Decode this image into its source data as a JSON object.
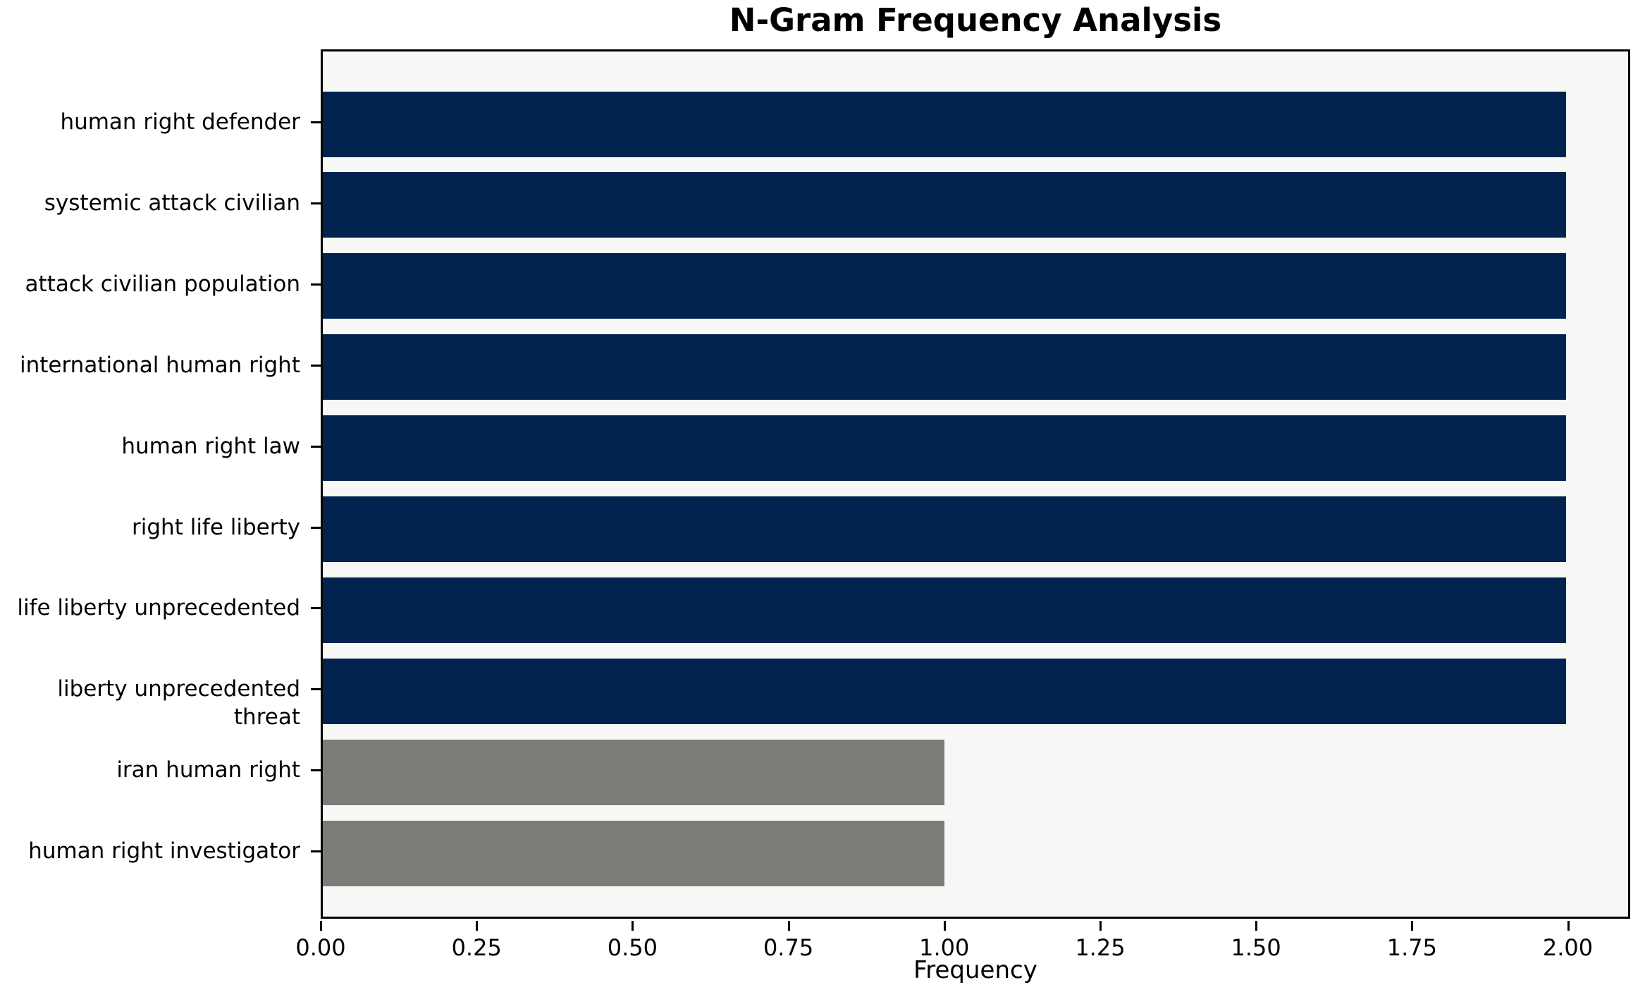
{
  "chart_data": {
    "type": "bar",
    "orientation": "horizontal",
    "title": "N-Gram Frequency Analysis",
    "xlabel": "Frequency",
    "ylabel": "",
    "categories": [
      "human right defender",
      "systemic attack civilian",
      "attack civilian population",
      "international human right",
      "human right law",
      "right life liberty",
      "life liberty unprecedented",
      "liberty unprecedented threat",
      "iran human right",
      "human right investigator"
    ],
    "values": [
      2,
      2,
      2,
      2,
      2,
      2,
      2,
      2,
      1,
      1
    ],
    "bar_colors": [
      "#022350",
      "#022350",
      "#022350",
      "#022350",
      "#022350",
      "#022350",
      "#022350",
      "#022350",
      "#7b7b78",
      "#7b7b78"
    ],
    "xlim": [
      0,
      2.1
    ],
    "x_ticks": [
      0.0,
      0.25,
      0.5,
      0.75,
      1.0,
      1.25,
      1.5,
      1.75,
      2.0
    ],
    "x_tick_labels": [
      "0.00",
      "0.25",
      "0.50",
      "0.75",
      "1.00",
      "1.25",
      "1.50",
      "1.75",
      "2.00"
    ],
    "grid": false,
    "legend": null,
    "plot_background": "#f7f7f6",
    "spine_color": "#000000"
  }
}
